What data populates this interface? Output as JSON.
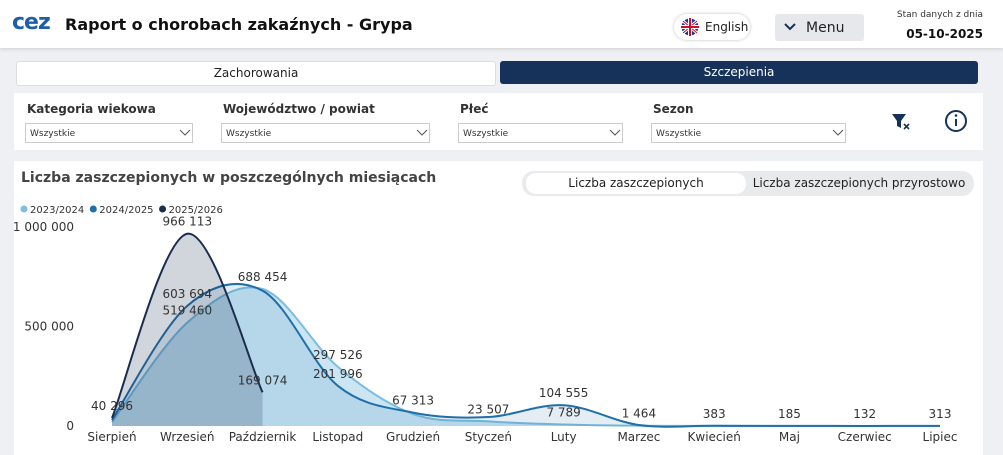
{
  "header": {
    "logo": "cez",
    "title": "Raport o chorobach zakaźnych - Grypa",
    "language": "English",
    "menu": "Menu",
    "status_label": "Stan danych z dnia",
    "status_date": "05-10-2025"
  },
  "tabs": [
    "Zachorowania",
    "Szczepienia"
  ],
  "filters": [
    {
      "label": "Kategoria wiekowa",
      "value": "Wszystkie"
    },
    {
      "label": "Województwo / powiat",
      "value": "Wszystkie"
    },
    {
      "label": "Płeć",
      "value": "Wszystkie"
    },
    {
      "label": "Sezon",
      "value": "Wszystkie"
    }
  ],
  "toggle": [
    "Liczba zaszczepionych",
    "Liczba zaszczepionych przyrostowo"
  ],
  "chart_data": {
    "type": "area",
    "title": "Liczba zaszczepionych w poszczególnych miesiącach",
    "categories": [
      "Sierpień",
      "Wrzesień",
      "Październik",
      "Listopad",
      "Grudzień",
      "Styczeń",
      "Luty",
      "Marzec",
      "Kwiecień",
      "Maj",
      "Czerwiec",
      "Lipiec"
    ],
    "ylim": [
      0,
      1000000
    ],
    "yticks": [
      0,
      {
        "value": 500000,
        "label": "500 000"
      },
      {
        "value": 1000000,
        "label": "1 000 000"
      }
    ],
    "series": [
      {
        "name": "2023/2024",
        "color": "#7cbde0",
        "values": [
          20000,
          519460,
          688454,
          297526,
          60000,
          23507,
          7789,
          1464,
          383,
          185,
          132,
          313
        ],
        "value_labels": [
          null,
          "519 460",
          "688 454",
          "297 526",
          null,
          "23 507",
          "7 789",
          "1 464",
          "383",
          "185",
          "132",
          "313"
        ]
      },
      {
        "name": "2024/2025",
        "color": "#1f6fa8",
        "values": [
          30000,
          603694,
          680000,
          201996,
          67313,
          45000,
          104555,
          5000,
          1000,
          500,
          300,
          500
        ],
        "value_labels": [
          null,
          "603 694",
          null,
          "201 996",
          "67 313",
          null,
          "104 555",
          null,
          null,
          null,
          null,
          null
        ]
      },
      {
        "name": "2025/2026",
        "color": "#1b2d4f",
        "values": [
          40296,
          966113,
          169074,
          null,
          null,
          null,
          null,
          null,
          null,
          null,
          null,
          null
        ],
        "value_labels": [
          "40 296",
          "966 113",
          "169 074",
          null,
          null,
          null,
          null,
          null,
          null,
          null,
          null,
          null
        ]
      }
    ]
  }
}
